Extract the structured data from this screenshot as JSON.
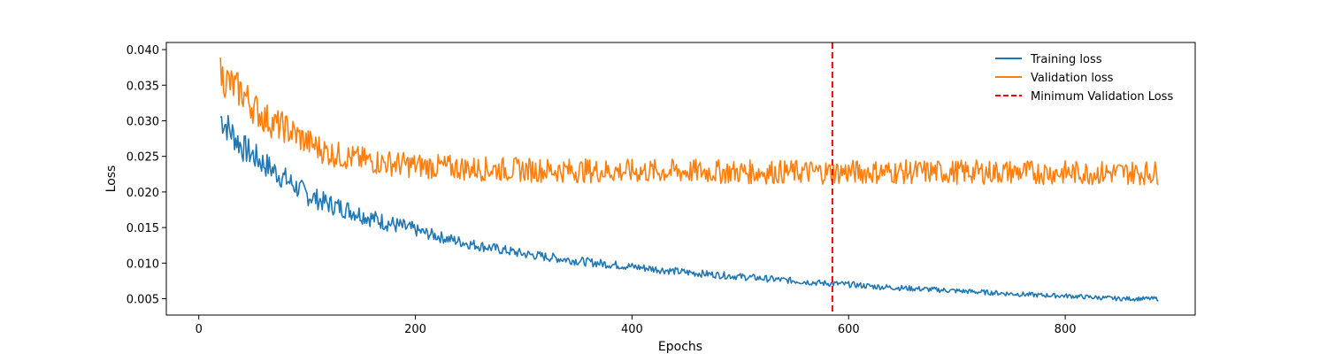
{
  "chart_data": {
    "type": "line",
    "title": "",
    "xlabel": "Epochs",
    "ylabel": "Loss",
    "xlim": [
      -30,
      920
    ],
    "ylim": [
      0.0027,
      0.041
    ],
    "xticks": [
      0,
      200,
      400,
      600,
      800
    ],
    "xtick_labels": [
      "0",
      "200",
      "400",
      "600",
      "800"
    ],
    "yticks": [
      0.005,
      0.01,
      0.015,
      0.02,
      0.025,
      0.03,
      0.035,
      0.04
    ],
    "ytick_labels": [
      "0.005",
      "0.010",
      "0.015",
      "0.020",
      "0.025",
      "0.030",
      "0.035",
      "0.040"
    ],
    "grid": false,
    "legend_position": "top-right",
    "series": [
      {
        "name": "Training loss",
        "color": "#1f77b4",
        "x": [
          20,
          40,
          60,
          80,
          100,
          120,
          140,
          160,
          180,
          200,
          225,
          250,
          275,
          300,
          325,
          350,
          375,
          400,
          425,
          450,
          475,
          500,
          525,
          550,
          575,
          600,
          625,
          650,
          675,
          700,
          725,
          750,
          775,
          800,
          825,
          850,
          886
        ],
        "values": [
          0.0305,
          0.0263,
          0.024,
          0.0218,
          0.0196,
          0.0183,
          0.0174,
          0.0163,
          0.0154,
          0.0146,
          0.0136,
          0.0127,
          0.012,
          0.0113,
          0.0108,
          0.0103,
          0.0099,
          0.0095,
          0.0091,
          0.0087,
          0.0084,
          0.0081,
          0.0078,
          0.0075,
          0.0072,
          0.007,
          0.0067,
          0.0065,
          0.0063,
          0.0061,
          0.0059,
          0.0057,
          0.0055,
          0.0054,
          0.0052,
          0.005,
          0.005
        ]
      },
      {
        "name": "Validation loss",
        "color": "#ff7f0e",
        "x": [
          20,
          30,
          40,
          50,
          60,
          70,
          80,
          90,
          100,
          120,
          140,
          160,
          180,
          200,
          250,
          300,
          350,
          400,
          450,
          500,
          550,
          600,
          650,
          700,
          750,
          800,
          850,
          886
        ],
        "values": [
          0.0365,
          0.035,
          0.034,
          0.032,
          0.0305,
          0.0295,
          0.029,
          0.028,
          0.027,
          0.0255,
          0.0248,
          0.0243,
          0.024,
          0.0237,
          0.0233,
          0.0231,
          0.023,
          0.0229,
          0.0229,
          0.0228,
          0.0228,
          0.0228,
          0.0228,
          0.0228,
          0.0228,
          0.0227,
          0.0227,
          0.0227
        ]
      }
    ],
    "annotations": [
      {
        "name": "Minimum Validation Loss",
        "type": "vline",
        "x": 585,
        "color": "#ff0000",
        "style": "dashed"
      }
    ]
  }
}
